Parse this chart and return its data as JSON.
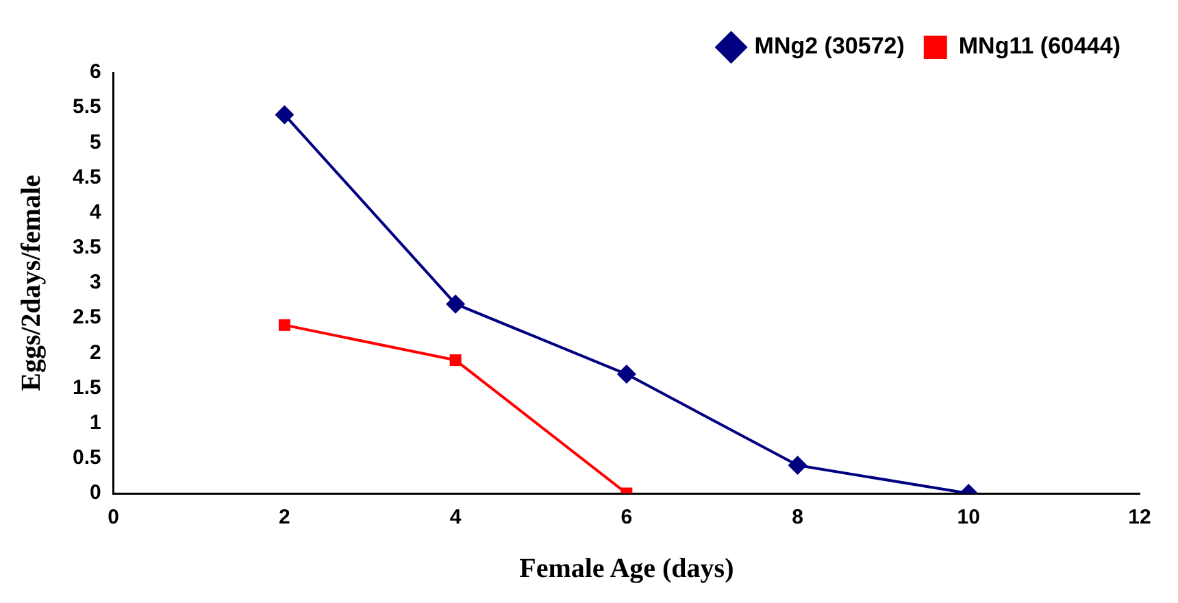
{
  "chart_data": {
    "type": "line",
    "xlabel": "Female Age (days)",
    "ylabel": "Eggs/2days/female",
    "xlim": [
      0,
      12
    ],
    "xticks": [
      0,
      2,
      4,
      6,
      8,
      10,
      12
    ],
    "ylim": [
      0,
      6
    ],
    "yticks": [
      0,
      0.5,
      1,
      1.5,
      2,
      2.5,
      3,
      3.5,
      4,
      4.5,
      5,
      5.5,
      6
    ],
    "grid": false,
    "legend": "top right",
    "line_style": "solid",
    "series": [
      {
        "name": "MNg2 (30572)",
        "color": "#000080",
        "marker": "diamond",
        "x": [
          2,
          4,
          6,
          8,
          10
        ],
        "values": [
          5.4,
          2.7,
          1.7,
          0.4,
          0
        ]
      },
      {
        "name": "MNg11 (60444)",
        "color": "#ff0000",
        "marker": "square",
        "x": [
          2,
          4,
          6
        ],
        "values": [
          2.4,
          1.9,
          0
        ]
      }
    ]
  }
}
